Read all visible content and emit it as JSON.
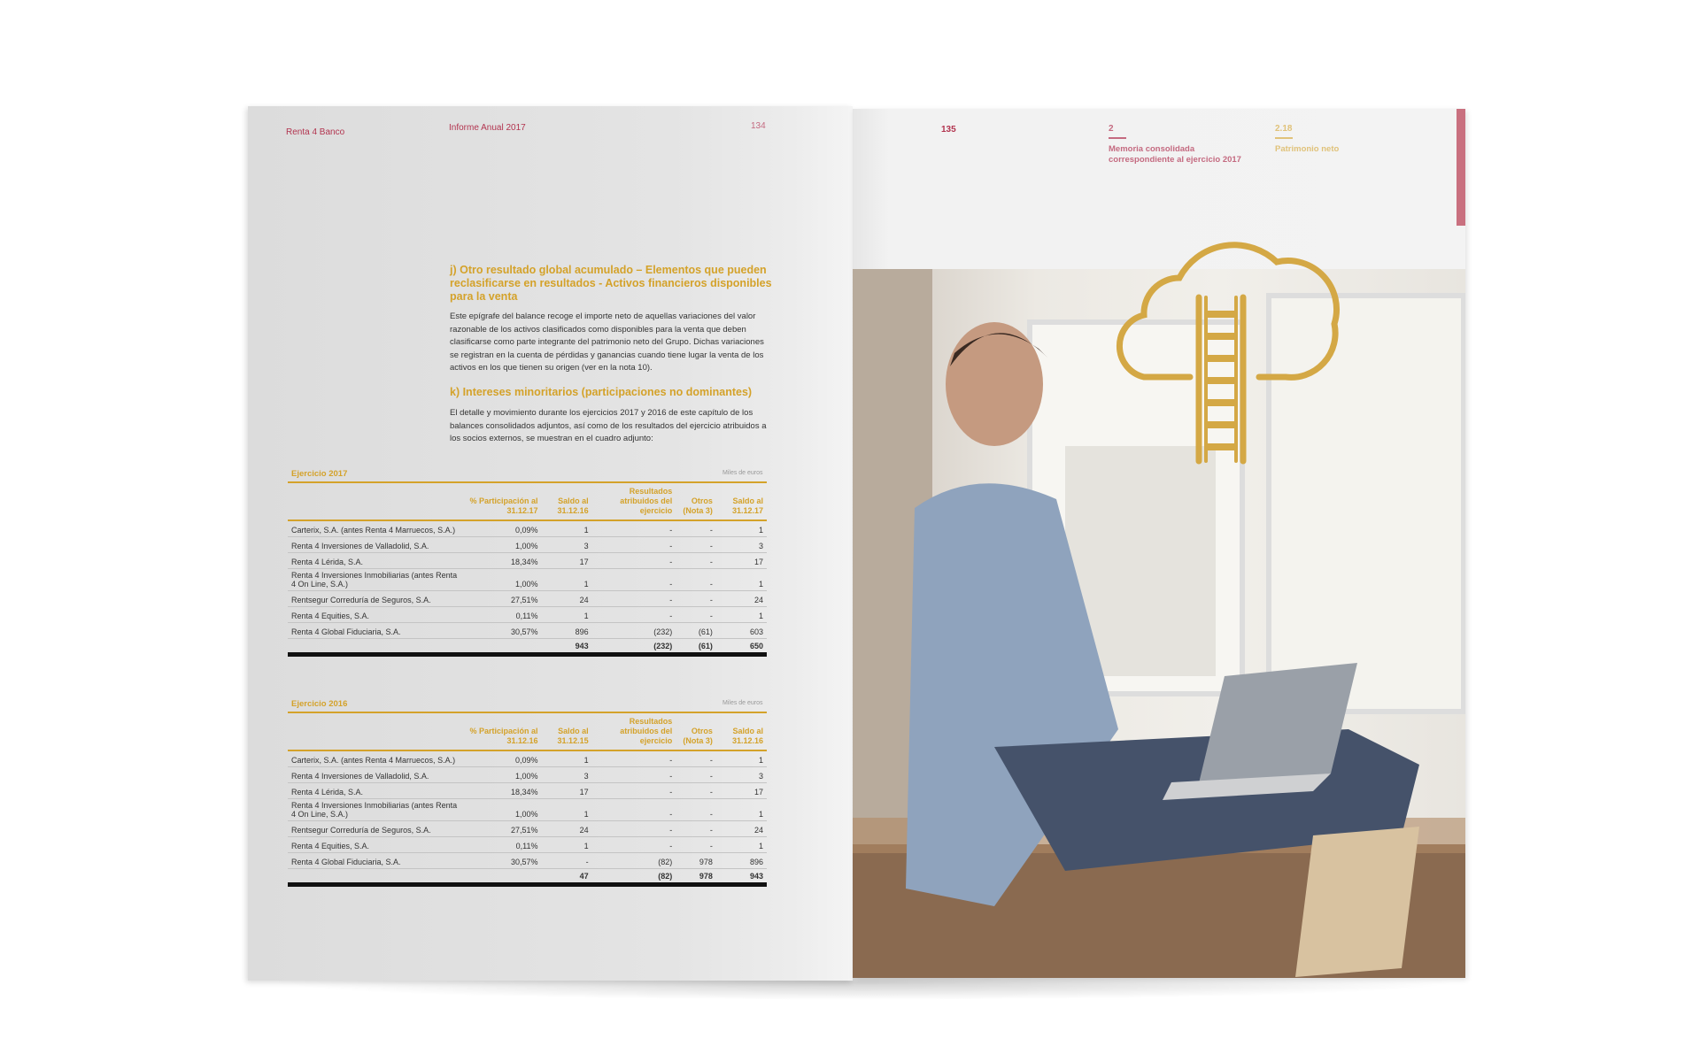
{
  "left_page": {
    "header": {
      "brand": "Renta 4 Banco",
      "publication": "Informe Anual 2017",
      "page_number": "134"
    },
    "section_j": {
      "heading": "j) Otro resultado global acumulado – Elementos que pueden reclasificarse en resultados - Activos financieros disponibles para la venta",
      "body": "Este epígrafe del balance recoge el importe neto de aquellas variaciones del valor razonable de los activos clasificados como disponibles para la venta que deben clasificarse como parte integrante del patrimonio neto del Grupo. Dichas variaciones se registran en la cuenta de pérdidas y ganancias cuando tiene lugar la venta de los activos en los que tienen su origen (ver en la nota 10)."
    },
    "section_k": {
      "heading": "k) Intereses minoritarios (participaciones no dominantes)",
      "body": "El detalle y movimiento durante los ejercicios 2017 y 2016 de este capítulo de los balances consolidados adjuntos, así como de los resultados del ejercicio atribuidos a los socios externos, se muestran en el cuadro adjunto:"
    },
    "tables": [
      {
        "title": "Ejercicio 2017",
        "unit": "Miles de euros",
        "columns": [
          "",
          "% Participación al 31.12.17",
          "Saldo al 31.12.16",
          "Resultados atribuidos del ejercicio",
          "Otros (Nota 3)",
          "Saldo al 31.12.17"
        ],
        "rows": [
          [
            "Carterix, S.A. (antes Renta 4 Marruecos, S.A.)",
            "0,09%",
            "1",
            "-",
            "-",
            "1"
          ],
          [
            "Renta 4 Inversiones de Valladolid, S.A.",
            "1,00%",
            "3",
            "-",
            "-",
            "3"
          ],
          [
            "Renta 4 Lérida, S.A.",
            "18,34%",
            "17",
            "-",
            "-",
            "17"
          ],
          [
            "Renta 4 Inversiones Inmobiliarias (antes Renta 4 On Line, S.A.)",
            "1,00%",
            "1",
            "-",
            "-",
            "1"
          ],
          [
            "Rentsegur Correduría de Seguros, S.A.",
            "27,51%",
            "24",
            "-",
            "-",
            "24"
          ],
          [
            "Renta 4 Equities, S.A.",
            "0,11%",
            "1",
            "-",
            "-",
            "1"
          ],
          [
            "Renta 4 Global Fiduciaria, S.A.",
            "30,57%",
            "896",
            "(232)",
            "(61)",
            "603"
          ]
        ],
        "total": [
          "",
          "",
          "943",
          "(232)",
          "(61)",
          "650"
        ]
      },
      {
        "title": "Ejercicio 2016",
        "unit": "Miles de euros",
        "columns": [
          "",
          "% Participación al 31.12.16",
          "Saldo al 31.12.15",
          "Resultados atribuidos del ejercicio",
          "Otros (Nota 3)",
          "Saldo al 31.12.16"
        ],
        "rows": [
          [
            "Carterix, S.A. (antes Renta 4 Marruecos, S.A.)",
            "0,09%",
            "1",
            "-",
            "-",
            "1"
          ],
          [
            "Renta 4 Inversiones de Valladolid, S.A.",
            "1,00%",
            "3",
            "-",
            "-",
            "3"
          ],
          [
            "Renta 4 Lérida, S.A.",
            "18,34%",
            "17",
            "-",
            "-",
            "17"
          ],
          [
            "Renta 4 Inversiones Inmobiliarias (antes Renta 4 On Line, S.A.)",
            "1,00%",
            "1",
            "-",
            "-",
            "1"
          ],
          [
            "Rentsegur Correduría de Seguros, S.A.",
            "27,51%",
            "24",
            "-",
            "-",
            "24"
          ],
          [
            "Renta 4 Equities, S.A.",
            "0,11%",
            "1",
            "-",
            "-",
            "1"
          ],
          [
            "Renta 4 Global Fiduciaria, S.A.",
            "30,57%",
            "-",
            "(82)",
            "978",
            "896"
          ]
        ],
        "total": [
          "",
          "",
          "47",
          "(82)",
          "978",
          "943"
        ]
      }
    ]
  },
  "right_page": {
    "page_number": "135",
    "chapter": {
      "number": "2",
      "title": "Memoria consolidada correspondiente al ejercicio 2017"
    },
    "section": {
      "number": "2.18",
      "title": "Patrimonio neto"
    },
    "icon": "cloud-ladder-icon",
    "photo": "man-with-laptop-photo"
  },
  "colors": {
    "brand_red": "#b2344f",
    "gold": "#d4a22a",
    "pink_tab": "#c9707f"
  }
}
